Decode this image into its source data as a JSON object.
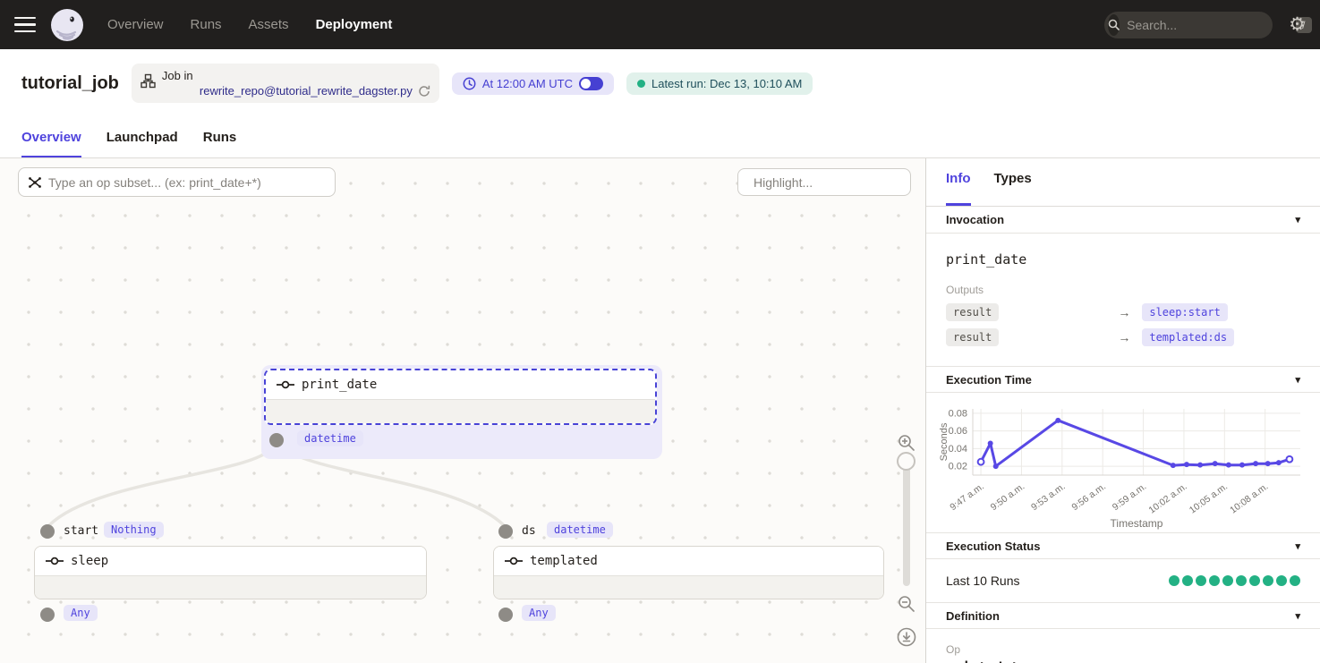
{
  "colors": {
    "accent": "#4F43DD",
    "chart_line": "#5848E5",
    "success_green": "#23B184",
    "nav_bg": "#211F1E"
  },
  "nav": {
    "items": [
      {
        "label": "Overview",
        "active": false
      },
      {
        "label": "Runs",
        "active": false
      },
      {
        "label": "Assets",
        "active": false
      },
      {
        "label": "Deployment",
        "active": true
      }
    ],
    "search_placeholder": "Search...",
    "search_shortcut": "/"
  },
  "header": {
    "title": "tutorial_job",
    "job_pill": {
      "line1": "Job in",
      "line2": "rewrite_repo@tutorial_rewrite_dagster.py"
    },
    "schedule_label": "At 12:00 AM UTC",
    "schedule_on": true,
    "latest_run_label": "Latest run:",
    "latest_run_value": "Dec 13, 10:10 AM"
  },
  "tabs": [
    {
      "label": "Overview",
      "active": true
    },
    {
      "label": "Launchpad",
      "active": false
    },
    {
      "label": "Runs",
      "active": false
    }
  ],
  "graph": {
    "op_subset_placeholder": "Type an op subset... (ex: print_date+*)",
    "highlight_placeholder": "Highlight...",
    "nodes": [
      {
        "name": "print_date",
        "selected": true,
        "output_type": "datetime"
      },
      {
        "name": "sleep",
        "input_name": "start",
        "input_type": "Nothing",
        "output_type": "Any"
      },
      {
        "name": "templated",
        "input_name": "ds",
        "input_type": "datetime",
        "output_type": "Any"
      }
    ]
  },
  "panel": {
    "tabs": [
      {
        "label": "Info",
        "active": true
      },
      {
        "label": "Types",
        "active": false
      }
    ],
    "invocation": {
      "title": "Invocation",
      "op_name": "print_date",
      "outputs_label": "Outputs",
      "outputs": [
        {
          "name": "result",
          "target": "sleep:start"
        },
        {
          "name": "result",
          "target": "templated:ds"
        }
      ]
    },
    "execution_time": {
      "title": "Execution Time"
    },
    "execution_status": {
      "title": "Execution Status",
      "last_runs_label": "Last 10 Runs",
      "run_statuses": [
        "success",
        "success",
        "success",
        "success",
        "success",
        "success",
        "success",
        "success",
        "success",
        "success"
      ]
    },
    "definition": {
      "title": "Definition",
      "kind_label": "Op",
      "op_name": "print_date"
    }
  },
  "chart_data": {
    "type": "line",
    "title": "Execution Time",
    "xlabel": "Timestamp",
    "ylabel": "Seconds",
    "x_ticks": [
      {
        "m": 47,
        "label": "9:47 a.m."
      },
      {
        "m": 50,
        "label": "9:50 a.m."
      },
      {
        "m": 53,
        "label": "9:53 a.m."
      },
      {
        "m": 56,
        "label": "9:56 a.m."
      },
      {
        "m": 59,
        "label": "9:59 a.m."
      },
      {
        "m": 62,
        "label": "10:02 a.m."
      },
      {
        "m": 65,
        "label": "10:05 a.m."
      },
      {
        "m": 68,
        "label": "10:08 a.m."
      }
    ],
    "x_unit_note": "minutes after 9:00 a.m.",
    "xlim_minutes": [
      46.4,
      70.6
    ],
    "y_ticks": [
      0.02,
      0.04,
      0.06,
      0.08
    ],
    "ylim": [
      0.01,
      0.085
    ],
    "grid": true,
    "points": [
      {
        "m": 47.0,
        "s": 0.025
      },
      {
        "m": 47.7,
        "s": 0.046
      },
      {
        "m": 48.1,
        "s": 0.02
      },
      {
        "m": 52.7,
        "s": 0.072
      },
      {
        "m": 61.2,
        "s": 0.021
      },
      {
        "m": 62.2,
        "s": 0.022
      },
      {
        "m": 63.2,
        "s": 0.0215
      },
      {
        "m": 64.3,
        "s": 0.023
      },
      {
        "m": 65.3,
        "s": 0.0215
      },
      {
        "m": 66.3,
        "s": 0.0215
      },
      {
        "m": 67.3,
        "s": 0.023
      },
      {
        "m": 68.2,
        "s": 0.023
      },
      {
        "m": 69.0,
        "s": 0.024
      },
      {
        "m": 69.8,
        "s": 0.028
      }
    ]
  }
}
